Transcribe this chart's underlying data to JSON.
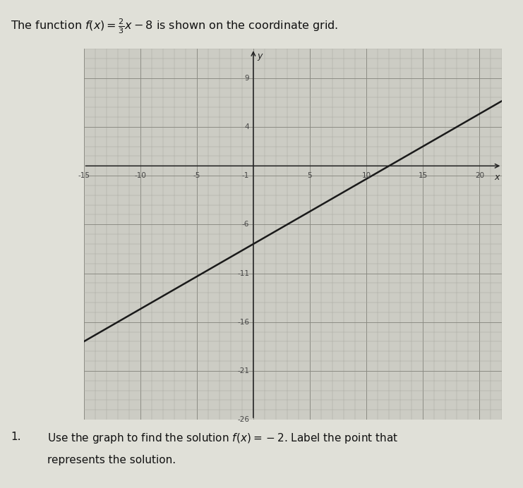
{
  "slope": 0.6667,
  "intercept": -8,
  "x_min": -15,
  "x_max": 22,
  "y_min": -26,
  "y_max": 12,
  "x_tick_major": 5,
  "y_tick_major": 5,
  "line_color": "#1a1a1a",
  "line_width": 1.8,
  "background_color": "#ccccc4",
  "fig_background": "#e0e0d8",
  "xlabel": "x",
  "ylabel": "y",
  "title_text": "The function ",
  "title_math": "$f(x)=\\frac{2}{3}x-8$",
  "title_suffix": " is shown on the coordinate grid.",
  "footnote_num": "1.",
  "footnote_text": "Use the graph to find the solution ",
  "footnote_math": "$f(x) = -2$",
  "footnote_text2": ". Label the point that",
  "footnote_line2": "represents the solution."
}
